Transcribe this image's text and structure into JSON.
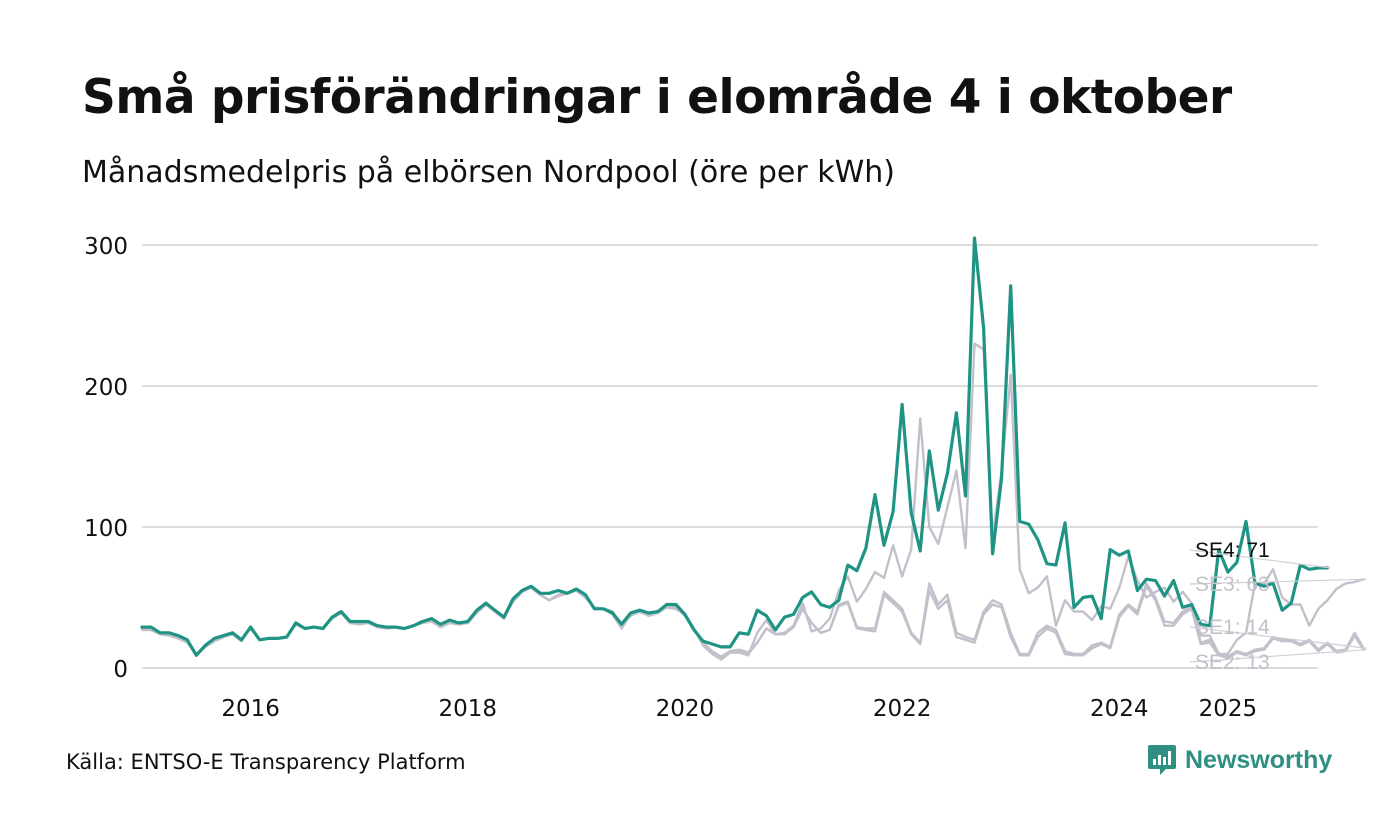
{
  "title": "Små prisförändringar i elområde 4 i oktober",
  "subtitle": "Månadsmedelpris på elbörsen Nordpool (öre per kWh)",
  "footer": {
    "source": "Källa: ENTSO-E Transparency Platform",
    "brand": "Newsworthy"
  },
  "colors": {
    "highlight": "#1f9484",
    "muted": "#c2c1cb",
    "grid": "#dcdcdc",
    "brand": "#2f8f82"
  },
  "chart_data": {
    "type": "line",
    "title": "Små prisförändringar i elområde 4 i oktober",
    "ylabel": "öre per kWh",
    "xlabel": "",
    "ylim": [
      0,
      300
    ],
    "yticks": [
      0,
      100,
      200,
      300
    ],
    "xlim": [
      2015.0,
      2025.83
    ],
    "xticks": [
      {
        "label": "2016",
        "value": 2016.0
      },
      {
        "label": "2018",
        "value": 2018.0
      },
      {
        "label": "2020",
        "value": 2020.0
      },
      {
        "label": "2022",
        "value": 2022.0
      },
      {
        "label": "2024",
        "value": 2024.0
      },
      {
        "label": "2025",
        "value": 2025.0
      }
    ],
    "x_start": 2015.0,
    "x_step_months": 1,
    "series": [
      {
        "name": "SE1",
        "label": "SE1: 14",
        "last_value": 14,
        "highlight": false,
        "values": [
          27,
          27,
          24,
          23,
          21,
          18,
          10,
          15,
          19,
          22,
          24,
          19,
          29,
          20,
          21,
          21,
          22,
          31,
          28,
          29,
          28,
          35,
          39,
          32,
          31,
          32,
          29,
          28,
          29,
          28,
          30,
          32,
          33,
          29,
          32,
          31,
          32,
          39,
          45,
          40,
          36,
          47,
          54,
          57,
          52,
          48,
          52,
          53,
          55,
          50,
          43,
          42,
          40,
          30,
          37,
          40,
          37,
          39,
          43,
          42,
          38,
          28,
          18,
          12,
          8,
          12,
          13,
          11,
          18,
          28,
          24,
          24,
          29,
          42,
          32,
          25,
          27,
          45,
          47,
          29,
          28,
          28,
          54,
          48,
          42,
          25,
          18,
          60,
          45,
          52,
          25,
          22,
          20,
          40,
          48,
          45,
          25,
          10,
          10,
          25,
          30,
          27,
          12,
          10,
          10,
          16,
          18,
          15,
          38,
          45,
          40,
          60,
          50,
          33,
          32,
          40,
          44,
          18,
          20,
          10,
          8,
          12,
          10,
          13,
          14,
          22,
          20,
          20,
          17,
          20,
          13,
          18,
          12,
          13,
          25,
          14
        ]
      },
      {
        "name": "SE2",
        "label": "SE2: 13",
        "last_value": 13,
        "highlight": false,
        "values": [
          27,
          27,
          24,
          23,
          21,
          18,
          10,
          15,
          19,
          22,
          24,
          19,
          29,
          20,
          21,
          21,
          22,
          31,
          28,
          29,
          28,
          35,
          39,
          32,
          31,
          32,
          29,
          28,
          29,
          28,
          30,
          32,
          33,
          29,
          32,
          31,
          32,
          39,
          45,
          40,
          36,
          47,
          54,
          57,
          52,
          48,
          52,
          53,
          55,
          50,
          43,
          42,
          40,
          30,
          37,
          40,
          37,
          39,
          43,
          42,
          38,
          28,
          17,
          11,
          7,
          12,
          12,
          10,
          18,
          28,
          24,
          24,
          29,
          42,
          32,
          25,
          27,
          44,
          46,
          28,
          27,
          26,
          52,
          46,
          40,
          24,
          17,
          55,
          42,
          48,
          22,
          20,
          18,
          38,
          45,
          43,
          22,
          9,
          9,
          22,
          28,
          25,
          10,
          9,
          9,
          14,
          17,
          14,
          36,
          44,
          38,
          58,
          48,
          30,
          30,
          38,
          42,
          17,
          18,
          9,
          7,
          11,
          9,
          12,
          13,
          21,
          19,
          19,
          16,
          19,
          12,
          17,
          11,
          12,
          23,
          13
        ]
      },
      {
        "name": "SE3",
        "label": "SE3: 63",
        "last_value": 63,
        "highlight": false,
        "values": [
          28,
          28,
          24,
          24,
          22,
          19,
          9,
          15,
          20,
          23,
          25,
          20,
          28,
          20,
          21,
          21,
          22,
          32,
          28,
          29,
          28,
          35,
          40,
          33,
          32,
          33,
          29,
          28,
          29,
          28,
          30,
          32,
          34,
          30,
          33,
          31,
          32,
          40,
          46,
          40,
          35,
          48,
          55,
          57,
          52,
          48,
          51,
          53,
          55,
          51,
          42,
          42,
          38,
          28,
          38,
          40,
          38,
          39,
          44,
          43,
          37,
          28,
          16,
          10,
          6,
          11,
          11,
          9,
          25,
          34,
          24,
          25,
          30,
          46,
          26,
          28,
          35,
          55,
          65,
          47,
          56,
          68,
          64,
          87,
          65,
          84,
          177,
          100,
          88,
          114,
          140,
          85,
          230,
          226,
          93,
          140,
          208,
          70,
          53,
          57,
          65,
          30,
          48,
          40,
          40,
          34,
          44,
          42,
          57,
          79,
          62,
          50,
          54,
          57,
          47,
          54,
          46,
          23,
          23,
          10,
          10,
          20,
          25,
          60,
          60,
          70,
          50,
          45,
          45,
          30,
          42,
          48,
          56,
          60,
          61,
          63
        ]
      },
      {
        "name": "SE4",
        "label": "SE4: 71",
        "last_value": 71,
        "highlight": true,
        "values": [
          29,
          29,
          25,
          25,
          23,
          20,
          9,
          16,
          21,
          23,
          25,
          20,
          29,
          20,
          21,
          21,
          22,
          32,
          28,
          29,
          28,
          36,
          40,
          33,
          33,
          33,
          30,
          29,
          29,
          28,
          30,
          33,
          35,
          31,
          34,
          32,
          33,
          41,
          46,
          41,
          36,
          49,
          55,
          58,
          53,
          53,
          55,
          53,
          56,
          52,
          42,
          42,
          39,
          31,
          39,
          41,
          39,
          40,
          45,
          45,
          38,
          27,
          19,
          17,
          15,
          15,
          25,
          24,
          41,
          37,
          27,
          36,
          38,
          50,
          54,
          45,
          43,
          48,
          73,
          69,
          85,
          123,
          87,
          111,
          187,
          110,
          83,
          154,
          112,
          138,
          181,
          122,
          305,
          241,
          81,
          135,
          271,
          104,
          102,
          91,
          74,
          73,
          103,
          43,
          50,
          51,
          35,
          84,
          80,
          83,
          55,
          63,
          62,
          51,
          62,
          43,
          45,
          31,
          30,
          84,
          68,
          75,
          104,
          60,
          58,
          60,
          41,
          46,
          73,
          70,
          71,
          71
        ]
      }
    ]
  }
}
